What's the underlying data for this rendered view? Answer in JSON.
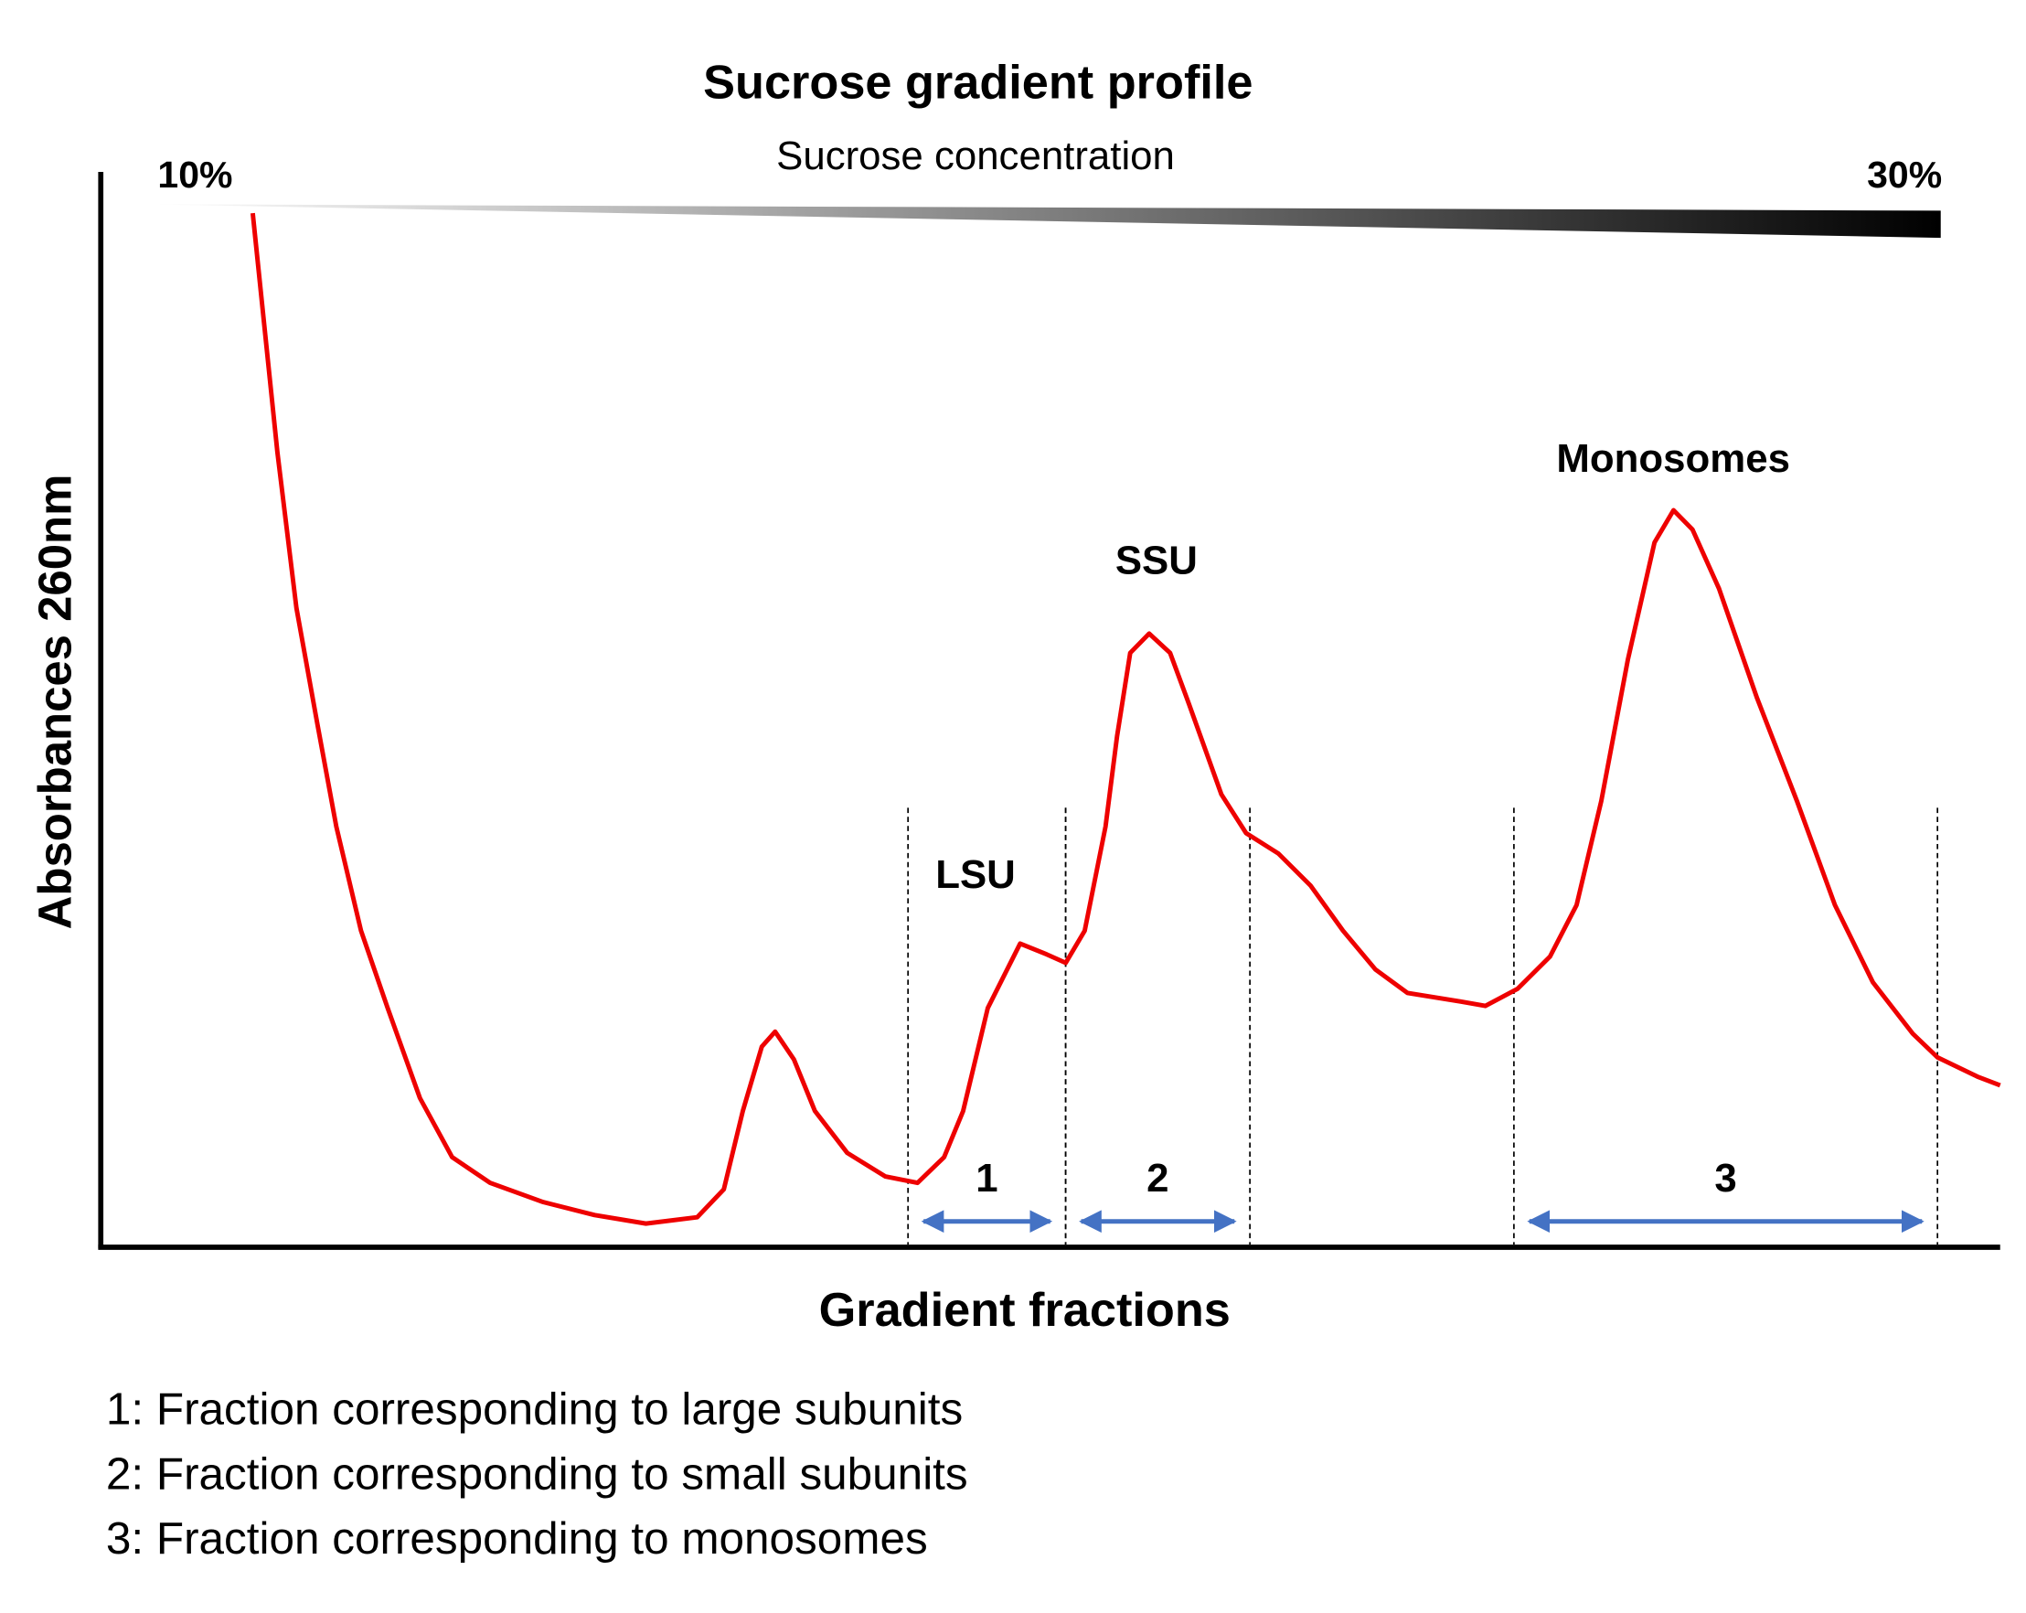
{
  "chart_data": {
    "type": "line",
    "title": "Sucrose gradient profile",
    "gradient": {
      "label": "Sucrose concentration",
      "start_label": "10%",
      "end_label": "30%"
    },
    "x_label": "Gradient fractions",
    "y_label": "Absorbances 260nm",
    "xlim": [
      0,
      100
    ],
    "ylim": [
      0,
      100
    ],
    "x": [
      8.0,
      8.6,
      9.3,
      10.3,
      11.4,
      12.4,
      13.7,
      15.1,
      16.8,
      18.5,
      20.5,
      23.3,
      26.0,
      28.7,
      31.4,
      32.8,
      33.8,
      34.8,
      35.5,
      36.5,
      37.6,
      39.3,
      41.3,
      43.0,
      44.4,
      45.4,
      46.7,
      48.4,
      49.8,
      50.8,
      51.8,
      52.9,
      53.5,
      54.2,
      55.2,
      56.3,
      57.3,
      59.0,
      60.3,
      62.0,
      63.7,
      65.4,
      67.1,
      68.8,
      71.6,
      72.9,
      74.6,
      76.3,
      77.7,
      79.0,
      80.4,
      81.8,
      82.8,
      83.8,
      85.2,
      87.2,
      89.3,
      91.3,
      93.3,
      95.4,
      96.7,
      98.8,
      100
    ],
    "series": [
      {
        "color": "#ee0000",
        "values": [
          96.4,
          86.1,
          74.1,
          59.6,
          48.8,
          39.2,
          29.5,
          22.3,
          13.9,
          8.4,
          6.0,
          4.2,
          3.0,
          2.2,
          2.8,
          5.4,
          12.7,
          18.7,
          20.1,
          17.5,
          12.7,
          8.8,
          6.6,
          6.0,
          8.4,
          12.7,
          22.3,
          28.3,
          27.3,
          26.5,
          29.5,
          39.2,
          47.6,
          55.4,
          57.2,
          55.4,
          50.6,
          42.2,
          38.6,
          36.7,
          33.7,
          29.5,
          25.9,
          23.7,
          22.9,
          22.5,
          24.1,
          27.1,
          31.9,
          41.6,
          54.8,
          65.7,
          68.7,
          66.9,
          61.4,
          51.2,
          41.6,
          31.9,
          24.7,
          19.9,
          17.7,
          15.9,
          15.1
        ]
      }
    ],
    "peaks": [
      "LSU",
      "SSU",
      "Monosomes"
    ],
    "fractions": [
      {
        "label": "1",
        "start": 42.5,
        "end": 50.8
      },
      {
        "label": "2",
        "start": 50.8,
        "end": 60.5
      },
      {
        "label": "3",
        "start": 74.4,
        "end": 96.7
      }
    ],
    "notes": [
      "1: Fraction corresponding to large subunits",
      "2: Fraction corresponding to small subunits",
      "3: Fraction corresponding to monosomes"
    ]
  }
}
